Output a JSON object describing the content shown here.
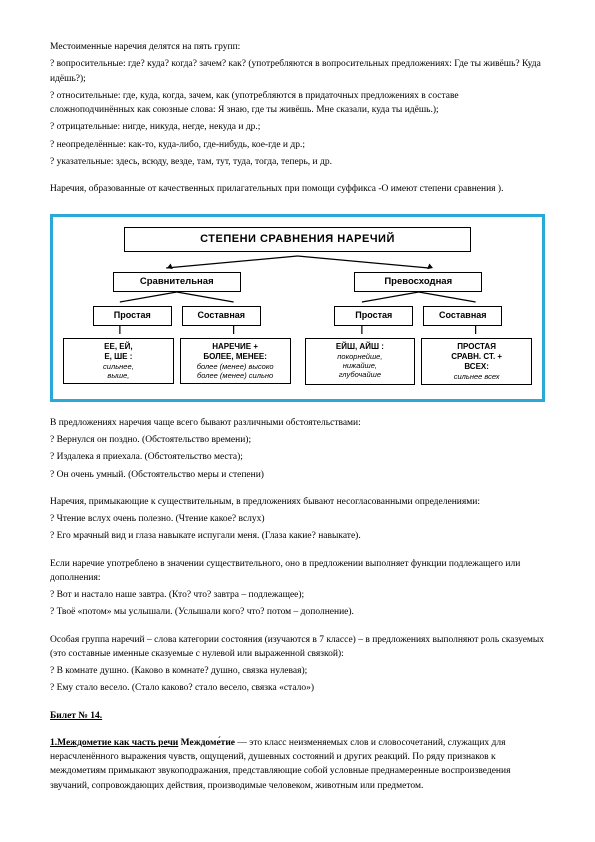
{
  "intro": "Местоименные наречия делятся на пять групп:",
  "groups": [
    "? вопросительные: где? куда? когда? зачем? как? (употребляются в вопросительных предложениях: Где ты живёшь? Куда идёшь?);",
    "? относительные: где, куда, когда, зачем, как (употребляются в придаточных предложениях в составе сложноподчинённых как союзные слова: Я знаю, где ты живёшь. Мне сказали, куда ты идёшь.);",
    "? отрицательные: нигде, никуда, негде, некуда и др.;",
    "? неопределённые: как-то, куда-либо, где-нибудь, кое-где и др.;",
    "? указательные: здесь, всюду, везде, там, тут, туда, тогда, теперь, и др."
  ],
  "afterGroups": "Наречия, образованные от качественных прилагательных при помощи суффикса -О имеют степени сравнения ).",
  "diagram": {
    "title": "СТЕПЕНИ СРАВНЕНИЯ НАРЕЧИЙ",
    "left": {
      "top": "Сравнительная",
      "sub": [
        "Простая",
        "Составная"
      ],
      "leaf": [
        "<b>ЕЕ, ЕЙ,<br>Е, ШЕ :</b><br><em>сильнее,<br>выше,</em>",
        "<b>НАРЕЧИЕ +<br>БОЛЕЕ, МЕНЕЕ:</b><br><em>более (менее) высоко<br>более (менее) сильно</em>"
      ]
    },
    "right": {
      "top": "Превосходная",
      "sub": [
        "Простая",
        "Составная"
      ],
      "leaf": [
        "<b>ЕЙШ, АЙШ :</b><br><em>покорнейше,<br>нижайше,<br>глубочайше</em>",
        "<b>ПРОСТАЯ<br>СРАВН. СТ. +<br>ВСЕХ:</b><br><em>сильнее всех</em>"
      ]
    }
  },
  "block2hdr": "В предложениях наречия чаще всего бывают различными обстоятельствами:",
  "block2": [
    "? Вернулся он поздно. (Обстоятельство времени);",
    "? Издалека я приехала. (Обстоятельство места);",
    "? Он очень умный. (Обстоятельство меры и степени)"
  ],
  "block3hdr": "Наречия, примыкающие к существительным, в предложениях бывают несогласованными определениями:",
  "block3": [
    "? Чтение вслух очень полезно. (Чтение какое? вслух)",
    "? Его мрачный вид и глаза навыкате испугали меня. (Глаза какие? навыкате)."
  ],
  "block4hdr": "Если наречие употреблено в значении существительного, оно в предложении выполняет функции подлежащего или дополнения:",
  "block4": [
    "? Вот и настало наше завтра. (Кто? что? завтра – подлежащее);",
    "? Твоё «потом» мы услышали. (Услышали кого? что? потом – дополнение)."
  ],
  "block5hdr": "Особая группа наречий – слова категории состояния (изучаются в 7 классе) – в предложениях выполняют роль сказуемых (это составные именные сказуемые с нулевой или выраженной связкой):",
  "block5": [
    "? В комнате душно. (Каково в комнате? душно, связка нулевая);",
    "? Ему стало весело. (Стало каково? стало весело, связка «стало»)"
  ],
  "ticket": "Билет № 14.",
  "last": "<span class='u'><b>1.Междометие как часть речи</b></span> <b>Междоме́тие</b> — это класс неизменяемых слов и словосочетаний, служащих для нерасчленённого выражения чувств, ощущений, душевных состояний и других реакций. По ряду признаков к междометиям примыкают звукоподражания, представляющие собой условные преднамеренные воспроизведения звучаний, сопровождающих действия, производимые человеком, животным или предметом."
}
